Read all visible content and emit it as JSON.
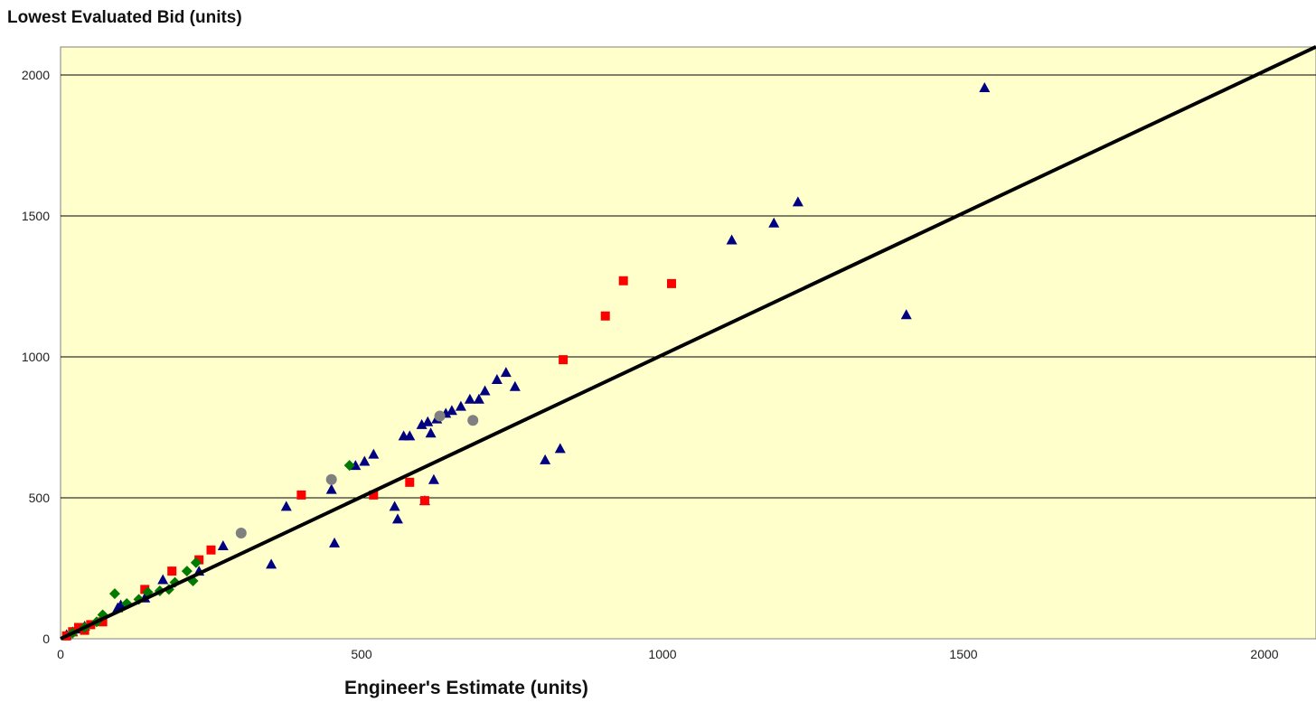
{
  "chart_data": {
    "type": "scatter",
    "title": "Lowest Evaluated Bid (units)",
    "xlabel": "Engineer's Estimate (units)",
    "ylabel": "",
    "xlim": [
      0,
      2100
    ],
    "ylim": [
      0,
      2100
    ],
    "x_ticks": [
      0,
      500,
      1000,
      1500,
      2000
    ],
    "y_ticks": [
      0,
      500,
      1000,
      1500,
      2000
    ],
    "grid": "horizontal",
    "background_color": "#FFFFCC",
    "reference_line": {
      "x": [
        0,
        2100
      ],
      "y": [
        0,
        2100
      ],
      "color": "#000000"
    },
    "series": [
      {
        "marker": "triangle",
        "color": "#000080",
        "points": [
          [
            10,
            15
          ],
          [
            20,
            25
          ],
          [
            30,
            35
          ],
          [
            40,
            45
          ],
          [
            95,
            110
          ],
          [
            100,
            120
          ],
          [
            140,
            145
          ],
          [
            170,
            210
          ],
          [
            230,
            240
          ],
          [
            270,
            330
          ],
          [
            350,
            265
          ],
          [
            375,
            470
          ],
          [
            455,
            340
          ],
          [
            450,
            530
          ],
          [
            490,
            615
          ],
          [
            505,
            630
          ],
          [
            520,
            655
          ],
          [
            555,
            470
          ],
          [
            560,
            425
          ],
          [
            570,
            720
          ],
          [
            580,
            720
          ],
          [
            600,
            760
          ],
          [
            605,
            490
          ],
          [
            610,
            770
          ],
          [
            615,
            730
          ],
          [
            620,
            565
          ],
          [
            625,
            780
          ],
          [
            640,
            800
          ],
          [
            650,
            810
          ],
          [
            665,
            825
          ],
          [
            680,
            850
          ],
          [
            695,
            850
          ],
          [
            705,
            880
          ],
          [
            725,
            920
          ],
          [
            740,
            945
          ],
          [
            755,
            895
          ],
          [
            805,
            635
          ],
          [
            830,
            675
          ],
          [
            1115,
            1415
          ],
          [
            1185,
            1475
          ],
          [
            1225,
            1550
          ],
          [
            1405,
            1150
          ],
          [
            1535,
            1955
          ]
        ]
      },
      {
        "marker": "square",
        "color": "#FF0000",
        "points": [
          [
            10,
            10
          ],
          [
            20,
            25
          ],
          [
            30,
            40
          ],
          [
            40,
            30
          ],
          [
            50,
            50
          ],
          [
            70,
            60
          ],
          [
            140,
            175
          ],
          [
            185,
            240
          ],
          [
            230,
            280
          ],
          [
            250,
            315
          ],
          [
            400,
            510
          ],
          [
            520,
            510
          ],
          [
            580,
            555
          ],
          [
            605,
            490
          ],
          [
            835,
            990
          ],
          [
            905,
            1145
          ],
          [
            935,
            1270
          ],
          [
            1015,
            1260
          ]
        ]
      },
      {
        "marker": "diamond",
        "color": "#007A00",
        "points": [
          [
            20,
            20
          ],
          [
            40,
            40
          ],
          [
            60,
            60
          ],
          [
            70,
            85
          ],
          [
            90,
            160
          ],
          [
            110,
            125
          ],
          [
            130,
            140
          ],
          [
            145,
            165
          ],
          [
            165,
            170
          ],
          [
            180,
            175
          ],
          [
            190,
            200
          ],
          [
            210,
            240
          ],
          [
            220,
            205
          ],
          [
            225,
            270
          ],
          [
            480,
            615
          ]
        ]
      },
      {
        "marker": "circle",
        "color": "#808080",
        "points": [
          [
            300,
            375
          ],
          [
            450,
            565
          ],
          [
            630,
            790
          ],
          [
            685,
            775
          ]
        ]
      }
    ]
  }
}
